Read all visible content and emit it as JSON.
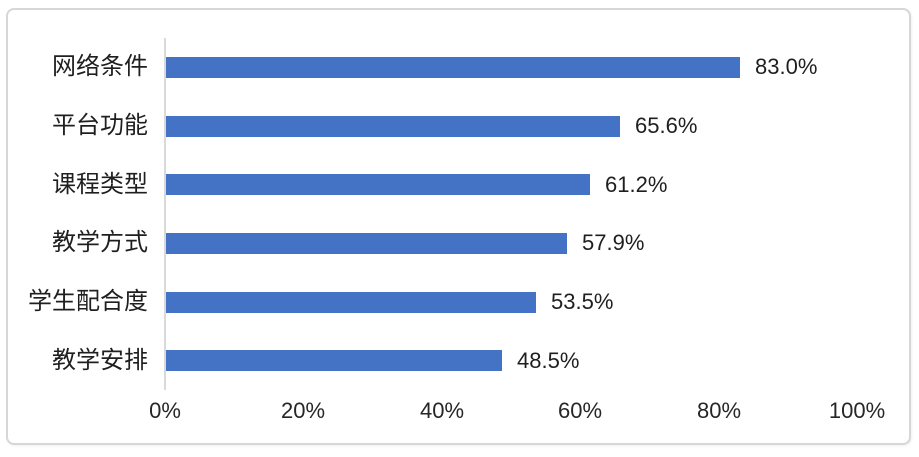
{
  "chart_data": {
    "type": "bar",
    "orientation": "horizontal",
    "title": "",
    "xlabel": "",
    "ylabel": "",
    "categories": [
      "网络条件",
      "平台功能",
      "课程类型",
      "教学方式",
      "学生配合度",
      "教学安排"
    ],
    "values": [
      83.0,
      65.6,
      61.2,
      57.9,
      53.5,
      48.5
    ],
    "value_labels": [
      "83.0%",
      "65.6%",
      "61.2%",
      "57.9%",
      "53.5%",
      "48.5%"
    ],
    "x_ticks": [
      {
        "value": 0,
        "label": "0%"
      },
      {
        "value": 20,
        "label": "20%"
      },
      {
        "value": 40,
        "label": "40%"
      },
      {
        "value": 60,
        "label": "60%"
      },
      {
        "value": 80,
        "label": "80%"
      },
      {
        "value": 100,
        "label": "100%"
      }
    ],
    "xlim": [
      0,
      100
    ],
    "grid": "off",
    "legend": "none",
    "colors": {
      "bar": "#4472C4",
      "axis_line": "#D9D9D9",
      "text": "#1F1F1F",
      "frame_border": "#D7D7D7",
      "background": "#FFFFFF"
    }
  }
}
